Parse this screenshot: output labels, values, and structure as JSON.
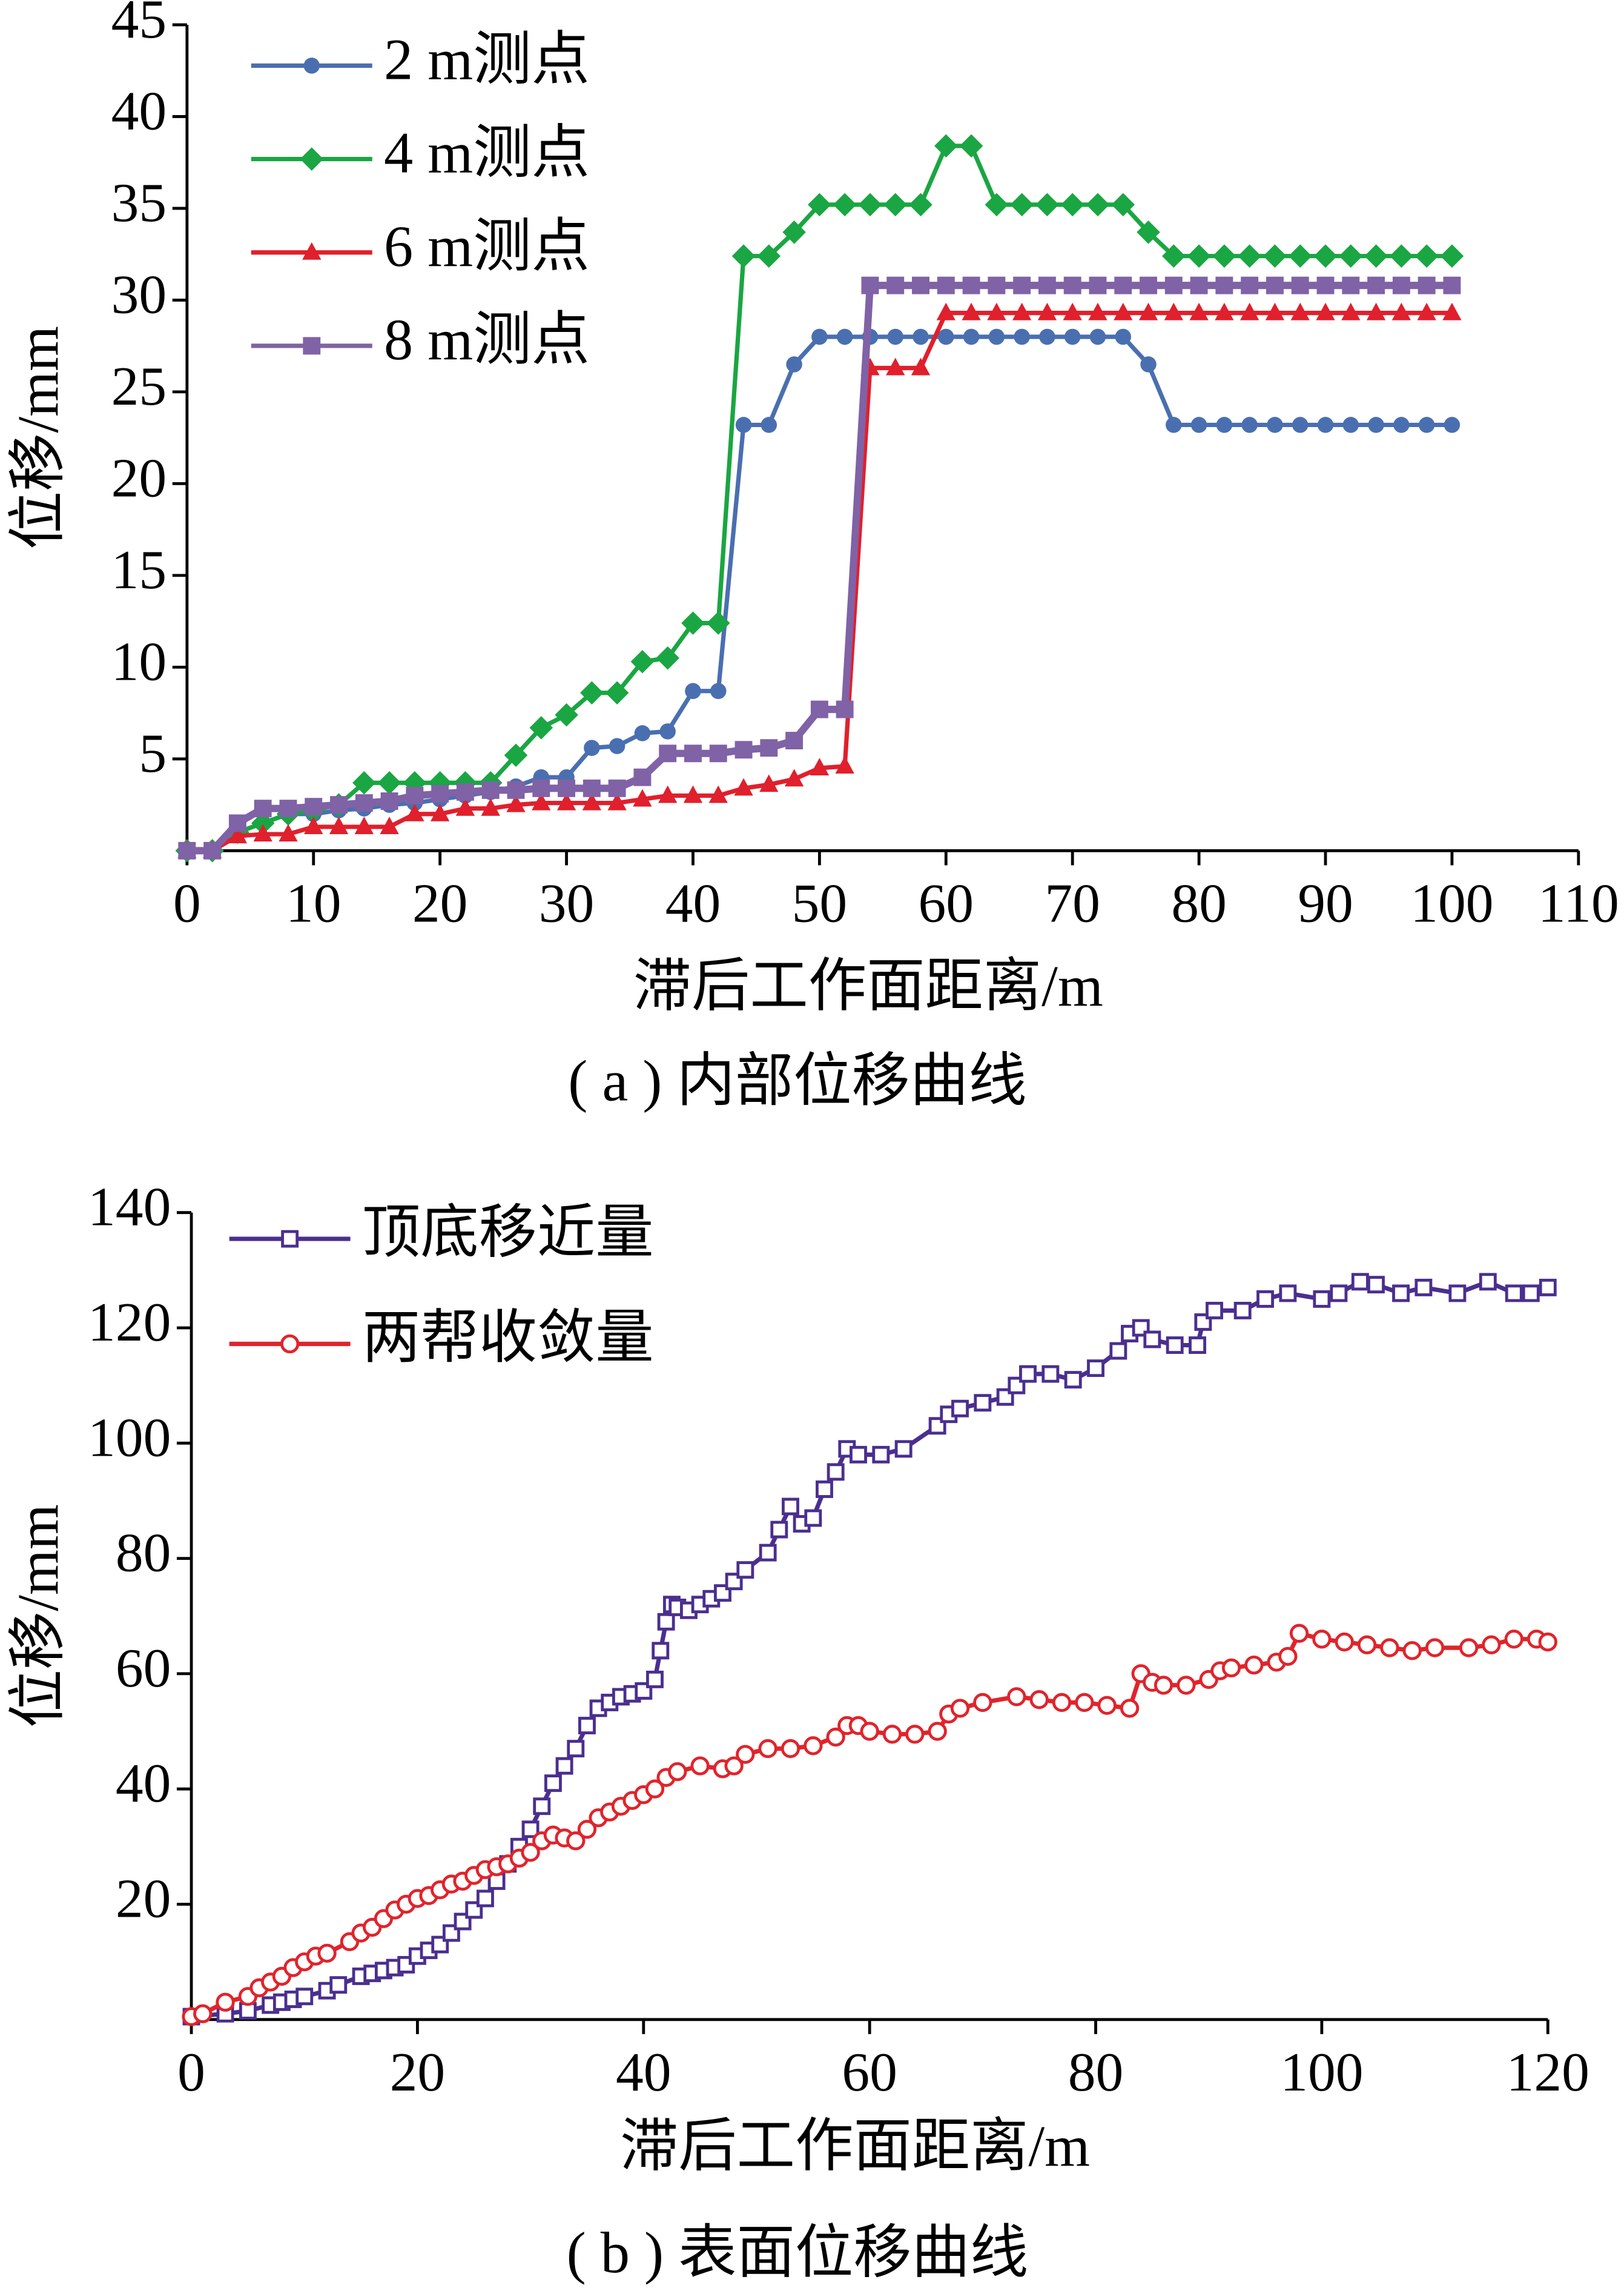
{
  "chart_data": [
    {
      "type": "line",
      "caption": "( a ) 内部位移曲线",
      "xlabel": "滞后工作面距离/m",
      "ylabel": "位移/mm",
      "xlim": [
        0,
        110
      ],
      "xticks": [
        0,
        10,
        20,
        30,
        40,
        50,
        60,
        70,
        80,
        90,
        100,
        110
      ],
      "ylim": [
        0,
        45
      ],
      "yticks": [
        5,
        10,
        15,
        20,
        25,
        30,
        35,
        40,
        45
      ],
      "grid": false,
      "legend": "upper left",
      "series": [
        {
          "name": "2 m测点",
          "color": "#4a6fb0",
          "marker": "circle",
          "x": [
            0,
            2,
            4,
            6,
            8,
            10,
            12,
            14,
            16,
            18,
            20,
            22,
            24,
            26,
            28,
            30,
            32,
            34,
            36,
            38,
            40,
            42,
            44,
            46,
            48,
            50,
            52,
            54,
            56,
            58,
            60,
            62,
            64,
            66,
            68,
            70,
            72,
            74,
            76,
            78,
            80,
            82,
            84,
            86,
            88,
            90,
            92,
            94,
            96,
            98,
            100
          ],
          "values": [
            0,
            0,
            1,
            1.5,
            2,
            2,
            2.2,
            2.3,
            2.5,
            2.6,
            2.8,
            3,
            3.2,
            3.5,
            4,
            4,
            5.6,
            5.7,
            6.4,
            6.5,
            8.7,
            8.7,
            23.2,
            23.2,
            26.5,
            28,
            28,
            28,
            28,
            28,
            28,
            28,
            28,
            28,
            28,
            28,
            28,
            28,
            26.5,
            23.2,
            23.2,
            23.2,
            23.2,
            23.2,
            23.2,
            23.2,
            23.2,
            23.2,
            23.2,
            23.2,
            23.2
          ]
        },
        {
          "name": "4 m测点",
          "color": "#1aa642",
          "marker": "diamond",
          "x": [
            0,
            2,
            4,
            6,
            8,
            10,
            12,
            14,
            16,
            18,
            20,
            22,
            24,
            26,
            28,
            30,
            32,
            34,
            36,
            38,
            40,
            42,
            44,
            46,
            48,
            50,
            52,
            54,
            56,
            58,
            60,
            62,
            64,
            66,
            68,
            70,
            72,
            74,
            76,
            78,
            80,
            82,
            84,
            86,
            88,
            90,
            92,
            94,
            96,
            98,
            100
          ],
          "values": [
            0,
            0,
            1,
            1.5,
            2,
            2.2,
            2.5,
            3.7,
            3.7,
            3.7,
            3.7,
            3.7,
            3.7,
            5.2,
            6.7,
            7.4,
            8.6,
            8.6,
            10.3,
            10.5,
            12.4,
            12.4,
            32.4,
            32.4,
            33.7,
            35.2,
            35.2,
            35.2,
            35.2,
            35.2,
            38.4,
            38.4,
            35.2,
            35.2,
            35.2,
            35.2,
            35.2,
            35.2,
            33.7,
            32.4,
            32.4,
            32.4,
            32.4,
            32.4,
            32.4,
            32.4,
            32.4,
            32.4,
            32.4,
            32.4,
            32.4
          ]
        },
        {
          "name": "6 m测点",
          "color": "#e0202c",
          "marker": "triangle",
          "x": [
            0,
            2,
            4,
            6,
            8,
            10,
            12,
            14,
            16,
            18,
            20,
            22,
            24,
            26,
            28,
            30,
            32,
            34,
            36,
            38,
            40,
            42,
            44,
            46,
            48,
            50,
            52,
            54,
            56,
            58,
            60,
            62,
            64,
            66,
            68,
            70,
            72,
            74,
            76,
            78,
            80,
            82,
            84,
            86,
            88,
            90,
            92,
            94,
            96,
            98,
            100
          ],
          "values": [
            0,
            0,
            0.8,
            0.9,
            0.9,
            1.3,
            1.3,
            1.3,
            1.3,
            2,
            2,
            2.3,
            2.3,
            2.5,
            2.6,
            2.6,
            2.6,
            2.6,
            2.8,
            3,
            3,
            3,
            3.4,
            3.6,
            3.9,
            4.5,
            4.6,
            26.3,
            26.3,
            26.3,
            29.3,
            29.3,
            29.3,
            29.3,
            29.3,
            29.3,
            29.3,
            29.3,
            29.3,
            29.3,
            29.3,
            29.3,
            29.3,
            29.3,
            29.3,
            29.3,
            29.3,
            29.3,
            29.3,
            29.3,
            29.3
          ]
        },
        {
          "name": "8 m测点",
          "color": "#8062a6",
          "marker": "square",
          "x": [
            0,
            2,
            4,
            6,
            8,
            10,
            12,
            14,
            16,
            18,
            20,
            22,
            24,
            26,
            28,
            30,
            32,
            34,
            36,
            38,
            40,
            42,
            44,
            46,
            48,
            50,
            52,
            54,
            56,
            58,
            60,
            62,
            64,
            66,
            68,
            70,
            72,
            74,
            76,
            78,
            80,
            82,
            84,
            86,
            88,
            90,
            92,
            94,
            96,
            98,
            100
          ],
          "values": [
            0,
            0,
            1.5,
            2.3,
            2.3,
            2.4,
            2.5,
            2.6,
            2.7,
            3,
            3.1,
            3.2,
            3.3,
            3.3,
            3.4,
            3.4,
            3.4,
            3.4,
            4,
            5.3,
            5.3,
            5.3,
            5.5,
            5.6,
            6,
            7.7,
            7.7,
            30.8,
            30.8,
            30.8,
            30.8,
            30.8,
            30.8,
            30.8,
            30.8,
            30.8,
            30.8,
            30.8,
            30.8,
            30.8,
            30.8,
            30.8,
            30.8,
            30.8,
            30.8,
            30.8,
            30.8,
            30.8,
            30.8,
            30.8,
            30.8
          ]
        }
      ]
    },
    {
      "type": "line",
      "caption": "( b ) 表面位移曲线",
      "xlabel": "滞后工作面距离/m",
      "ylabel": "位移/mm",
      "xlim": [
        0,
        120
      ],
      "xticks": [
        0,
        20,
        40,
        60,
        80,
        100,
        120
      ],
      "ylim": [
        0,
        140
      ],
      "yticks": [
        20,
        40,
        60,
        80,
        100,
        120,
        140
      ],
      "grid": false,
      "legend": "upper left",
      "series": [
        {
          "name": "顶底移近量",
          "color": "#4a2f8f",
          "marker": "open-square",
          "x": [
            0,
            3,
            5,
            7,
            8,
            9,
            10,
            12,
            13,
            15,
            16,
            17,
            18,
            19,
            20,
            21,
            22,
            23,
            24,
            25,
            26,
            27,
            28,
            29,
            30,
            31,
            32,
            33,
            34,
            35,
            36,
            37,
            38,
            39,
            40,
            41,
            41.5,
            42,
            42.5,
            43,
            44,
            45,
            46,
            47,
            48,
            49,
            51,
            52,
            53,
            54,
            55,
            56,
            57,
            58,
            59,
            61,
            63,
            66,
            67,
            68,
            70,
            72,
            73,
            74,
            76,
            78,
            80,
            82,
            83,
            84,
            85,
            87,
            89,
            89.5,
            90.5,
            93,
            95,
            97,
            100,
            101.5,
            103.4,
            104.8,
            107,
            109,
            112,
            114.7,
            117,
            118.5,
            120
          ],
          "values": [
            0.5,
            1,
            1.5,
            2.5,
            3,
            3.5,
            4,
            5,
            6,
            7.5,
            8,
            8.5,
            9,
            9.5,
            11,
            12,
            13,
            15,
            17,
            19,
            21,
            24,
            27,
            30,
            33,
            37,
            41,
            44,
            47,
            51,
            54,
            55,
            56,
            56.5,
            57,
            59,
            64,
            69,
            72,
            71.5,
            71,
            72,
            73,
            74,
            76,
            78,
            81,
            85,
            89,
            86,
            87,
            92,
            95,
            99,
            98,
            98,
            99,
            103,
            105,
            106,
            107,
            108,
            110,
            112,
            112,
            111,
            113,
            116,
            119,
            120,
            118,
            117,
            117,
            121,
            123,
            123,
            125,
            126,
            125,
            126,
            128,
            127.5,
            126,
            127,
            126,
            128,
            126,
            126,
            127
          ]
        },
        {
          "name": "两帮收敛量",
          "color": "#e0242c",
          "marker": "open-circle",
          "x": [
            0,
            1,
            3,
            5,
            6,
            7,
            8,
            9,
            10,
            11,
            12,
            14,
            15,
            16,
            17,
            18,
            19,
            20,
            21,
            22,
            23,
            24,
            25,
            26,
            27,
            28,
            29,
            30,
            31,
            32,
            33,
            34,
            35,
            36,
            37,
            38,
            39,
            40,
            41,
            42,
            43,
            45,
            47,
            48,
            49,
            51,
            53,
            55,
            57,
            58,
            59,
            60,
            62,
            64,
            66,
            67,
            68,
            70,
            73,
            75,
            77,
            79,
            81,
            83,
            84,
            85,
            86,
            88,
            90,
            91,
            92,
            94,
            96,
            97,
            98,
            100,
            102,
            104,
            106,
            108,
            110,
            113,
            115,
            117,
            119,
            120
          ],
          "values": [
            0.5,
            1,
            3,
            4,
            5.5,
            6.5,
            7.5,
            9,
            10,
            11,
            11.5,
            13.5,
            15,
            16,
            17.5,
            19,
            20,
            21,
            21.5,
            22.5,
            23.5,
            24,
            25,
            26,
            26.5,
            27,
            28,
            29,
            31,
            32,
            31.5,
            31,
            33,
            35,
            36,
            37,
            38,
            39,
            40,
            42,
            43,
            44,
            43.5,
            44,
            46,
            47,
            47,
            47.5,
            49,
            51,
            51,
            50,
            49.5,
            49.5,
            50,
            53,
            54,
            55,
            56,
            55.5,
            55,
            55,
            54.5,
            54,
            60,
            58.5,
            58,
            58,
            59,
            60.5,
            61,
            61.5,
            62,
            63,
            67,
            66,
            65.5,
            65,
            64.5,
            64,
            64.5,
            64.5,
            65,
            66,
            66,
            65.5
          ]
        }
      ]
    }
  ]
}
